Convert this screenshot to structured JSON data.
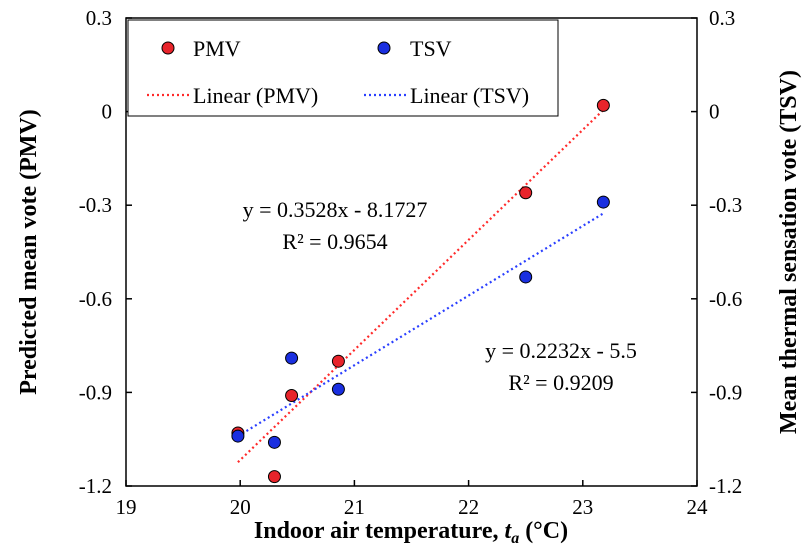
{
  "chart_data": {
    "type": "scatter",
    "xlabel": "Indoor air temperature, ",
    "xlabel_var": "t",
    "xlabel_sub": "a",
    "xlabel_unit": " (°C)",
    "ylabel_left": "Predicted mean vote (PMV)",
    "ylabel_right": "Mean thermal sensation vote (TSV)",
    "xlim": [
      19,
      24
    ],
    "ylim": [
      -1.2,
      0.3
    ],
    "xticks": [
      "19",
      "20",
      "21",
      "22",
      "23",
      "24"
    ],
    "yticks": [
      "0.3",
      "0",
      "-0.3",
      "-0.6",
      "-0.9",
      "-1.2"
    ],
    "grid": false,
    "legend_position": "top",
    "series": [
      {
        "name": "PMV",
        "color": "#e8242b",
        "points": [
          [
            19.98,
            -1.03
          ],
          [
            20.3,
            -1.17
          ],
          [
            20.45,
            -0.91
          ],
          [
            20.86,
            -0.8
          ],
          [
            22.5,
            -0.26
          ],
          [
            23.18,
            0.02
          ]
        ]
      },
      {
        "name": "TSV",
        "color": "#1a2fe0",
        "points": [
          [
            19.98,
            -1.04
          ],
          [
            20.3,
            -1.06
          ],
          [
            20.45,
            -0.79
          ],
          [
            20.86,
            -0.89
          ],
          [
            22.5,
            -0.53
          ],
          [
            23.18,
            -0.29
          ]
        ]
      }
    ],
    "trendlines": [
      {
        "name": "Linear (PMV)",
        "color": "#ff2a2a",
        "slope": 0.3528,
        "intercept": -8.1727,
        "x_range": [
          19.98,
          23.18
        ],
        "equation": "y = 0.3528x - 8.1727",
        "r2": "R² = 0.9654"
      },
      {
        "name": "Linear (TSV)",
        "color": "#2a3fff",
        "slope": 0.2232,
        "intercept": -5.5,
        "x_range": [
          19.98,
          23.18
        ],
        "equation": "y = 0.2232x - 5.5",
        "r2": "R² = 0.9209"
      }
    ]
  }
}
